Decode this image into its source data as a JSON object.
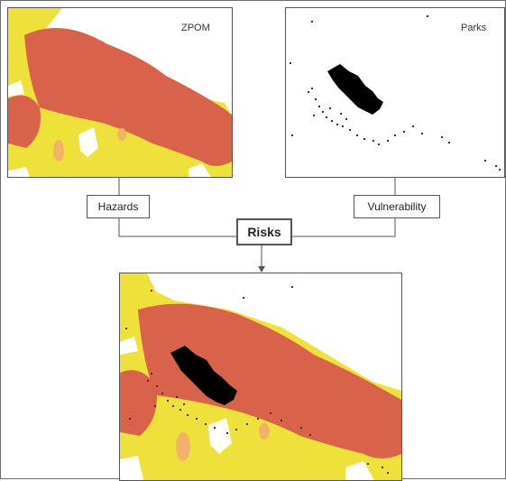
{
  "panels": {
    "hazard_map": {
      "label": "ZPOM"
    },
    "vulnerability_map": {
      "label": "Parks"
    },
    "risk_map": {
      "label": ""
    }
  },
  "boxes": {
    "hazards": "Hazards",
    "vulnerability": "Vulnerability",
    "risks": "Risks"
  },
  "colors": {
    "hazard_high": "#d9634a",
    "hazard_medium": "#f1b36a",
    "hazard_low": "#eee23a",
    "park": "#000000",
    "line": "#555555"
  }
}
